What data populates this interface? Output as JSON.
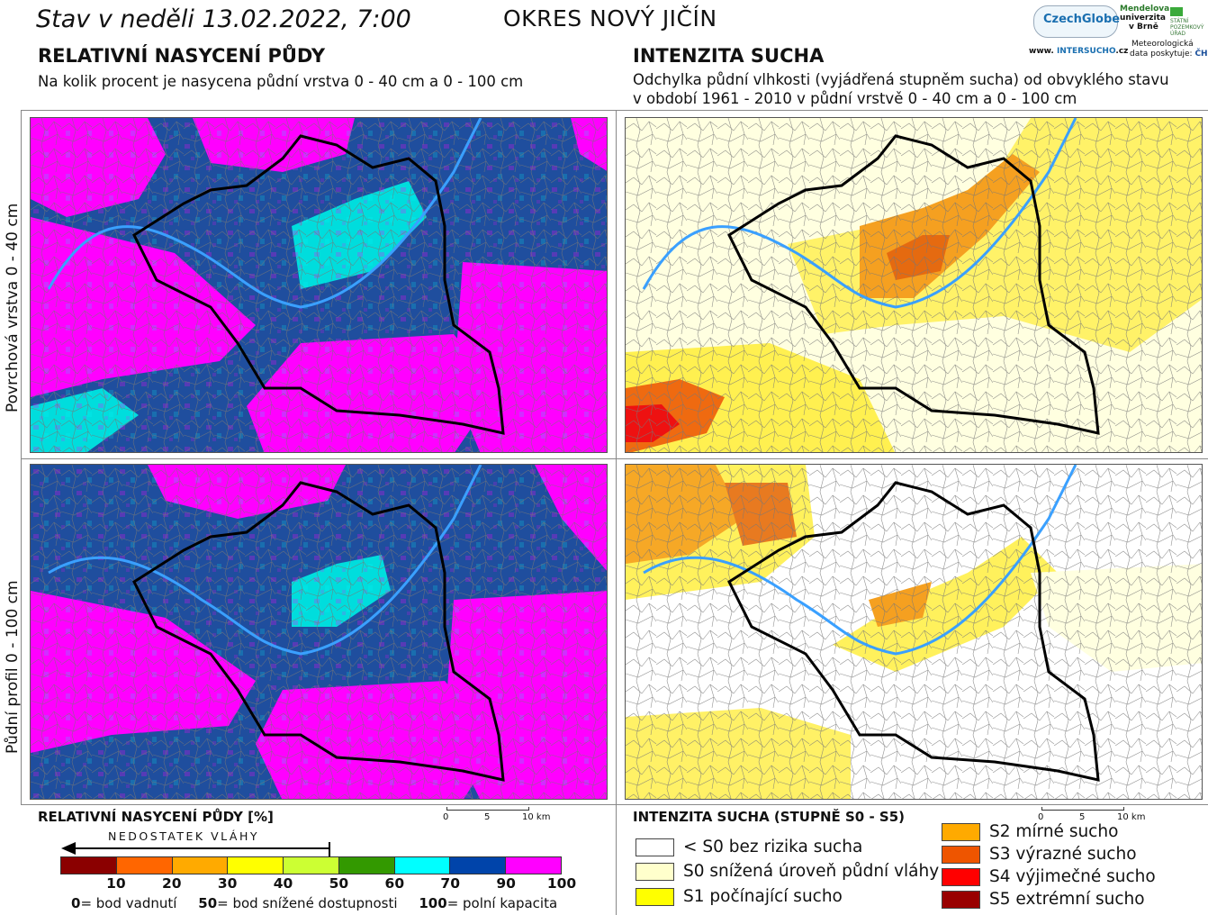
{
  "header": {
    "date_text": "Stav v neděli 13.02.2022, 7:00",
    "district": "OKRES NOVÝ JIČÍN"
  },
  "left_section": {
    "title": "RELATIVNÍ NASYCENÍ PŮDY",
    "subtitle": "Na kolik procent je nasycena půdní vrstva 0 - 40 cm a 0 - 100 cm"
  },
  "right_section": {
    "title": "INTENZITA SUCHA",
    "subtitle_line1": "Odchylka půdní vlhkosti (vyjádřená stupněm sucha) od obvyklého stavu",
    "subtitle_line2": "v období 1961 - 2010 v půdní vrstvě 0 - 40 cm a 0 - 100 cm"
  },
  "row_labels": {
    "top": "Povrchová vrstva 0 - 40 cm",
    "bottom": "Půdní profil 0 - 100 cm"
  },
  "logos": {
    "czechglobe": "CzechGlobe",
    "mendel_line1": "Mendelova",
    "mendel_line2": "univerzita",
    "mendel_line3": "v Brně",
    "spu_line1": "STÁTNÍ",
    "spu_line2": "POZEMKOVÝ",
    "spu_line3": "ÚŘAD",
    "intersucho_prefix": "www.",
    "intersucho_main": "INTERSUCHO",
    "intersucho_suffix": ".cz",
    "meteo_line1": "Meteorologická",
    "meteo_line2": "data poskytuje:",
    "chmu": "ČHMÚ"
  },
  "scale_bar": {
    "label_0": "0",
    "label_5": "5",
    "label_10": "10 km"
  },
  "saturation_legend": {
    "title": "RELATIVNÍ NASYCENÍ PŮDY [%]",
    "arrow_label": "NEDOSTATEK VLÁHY",
    "colors": [
      "#8b0000",
      "#ff6600",
      "#ffaa00",
      "#ffff00",
      "#ccff33",
      "#339900",
      "#00ffff",
      "#0044aa",
      "#ff00ff"
    ],
    "ticks": [
      "10",
      "20",
      "30",
      "40",
      "50",
      "60",
      "70",
      "90",
      "100"
    ],
    "note_0_value": "0",
    "note_0_text": "= bod vadnutí",
    "note_50_value": "50",
    "note_50_text": "= bod snížené dostupnosti",
    "note_100_value": "100",
    "note_100_text": "= polní kapacita"
  },
  "drought_legend": {
    "title": "INTENZITA SUCHA (STUPNĚ S0 - S5)",
    "items": [
      {
        "color": "#ffffff",
        "label": "< S0 bez rizika sucha"
      },
      {
        "color": "#ffffcc",
        "label": "S0 snížená úroveň půdní vláhy"
      },
      {
        "color": "#ffff00",
        "label": "S1 počínající sucho"
      },
      {
        "color": "#ffaa00",
        "label": "S2 mírné sucho"
      },
      {
        "color": "#ee5500",
        "label": "S3 výrazné sucho"
      },
      {
        "color": "#ff0000",
        "label": "S4 výjimečné sucho"
      },
      {
        "color": "#990000",
        "label": "S5 extrémní sucho"
      }
    ]
  }
}
